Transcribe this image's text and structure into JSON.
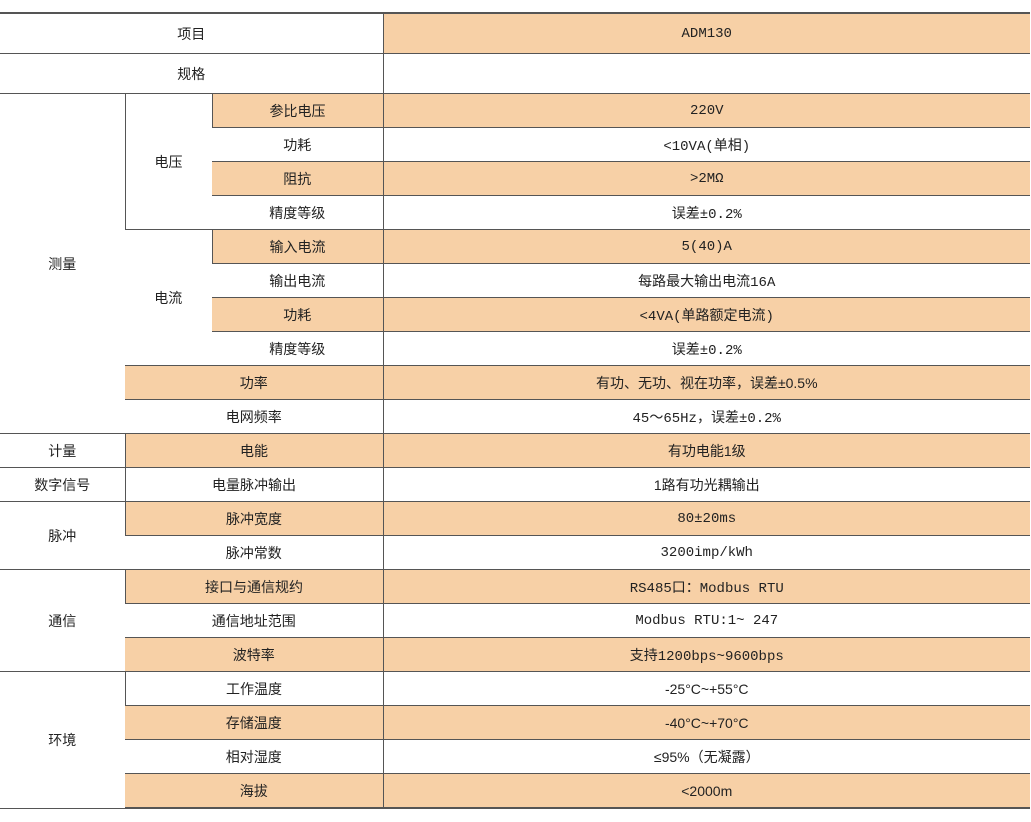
{
  "colors": {
    "shade": "#f7d0a6",
    "border": "#555555"
  },
  "header": {
    "item_label": "项目",
    "model": "ADM130",
    "spec_label": "规格",
    "spec_value": ""
  },
  "measurement": {
    "label": "测量",
    "voltage": {
      "label": "电压",
      "rows": [
        {
          "name": "参比电压",
          "value": "220V"
        },
        {
          "name": "功耗",
          "value": "<10VA(单相)"
        },
        {
          "name": "阻抗",
          "value": ">2MΩ"
        },
        {
          "name": "精度等级",
          "value": "误差±0.2%"
        }
      ]
    },
    "current": {
      "label": "电流",
      "rows": [
        {
          "name": "输入电流",
          "value": "5(40)A"
        },
        {
          "name": "输出电流",
          "value": "每路最大输出电流16A"
        },
        {
          "name": "功耗",
          "value": "<4VA(单路额定电流)"
        },
        {
          "name": "精度等级",
          "value": "误差±0.2%"
        }
      ]
    },
    "power": {
      "name": "功率",
      "value": "有功、无功、视在功率，误差±0.5%"
    },
    "frequency": {
      "name": "电网频率",
      "value": "45～65Hz，误差±0.2%"
    }
  },
  "metering": {
    "label": "计量",
    "name": "电能",
    "value": "有功电能1级"
  },
  "digital": {
    "label": "数字信号",
    "name": "电量脉冲输出",
    "value": "1路有功光耦输出"
  },
  "pulse": {
    "label": "脉冲",
    "rows": [
      {
        "name": "脉冲宽度",
        "value": "80±20ms"
      },
      {
        "name": "脉冲常数",
        "value": "3200imp/kWh"
      }
    ]
  },
  "comm": {
    "label": "通信",
    "rows": [
      {
        "name": "接口与通信规约",
        "value": "RS485口：Modbus RTU"
      },
      {
        "name": "通信地址范围",
        "value": "Modbus RTU:1~ 247"
      },
      {
        "name": "波特率",
        "value": "支持1200bps~9600bps"
      }
    ]
  },
  "env": {
    "label": "环境",
    "rows": [
      {
        "name": "工作温度",
        "value": "-25°C~+55°C"
      },
      {
        "name": "存储温度",
        "value": "-40°C~+70°C"
      },
      {
        "name": "相对湿度",
        "value": "≤95%（无凝露）"
      },
      {
        "name": "海拔",
        "value": "<2000m"
      }
    ]
  }
}
